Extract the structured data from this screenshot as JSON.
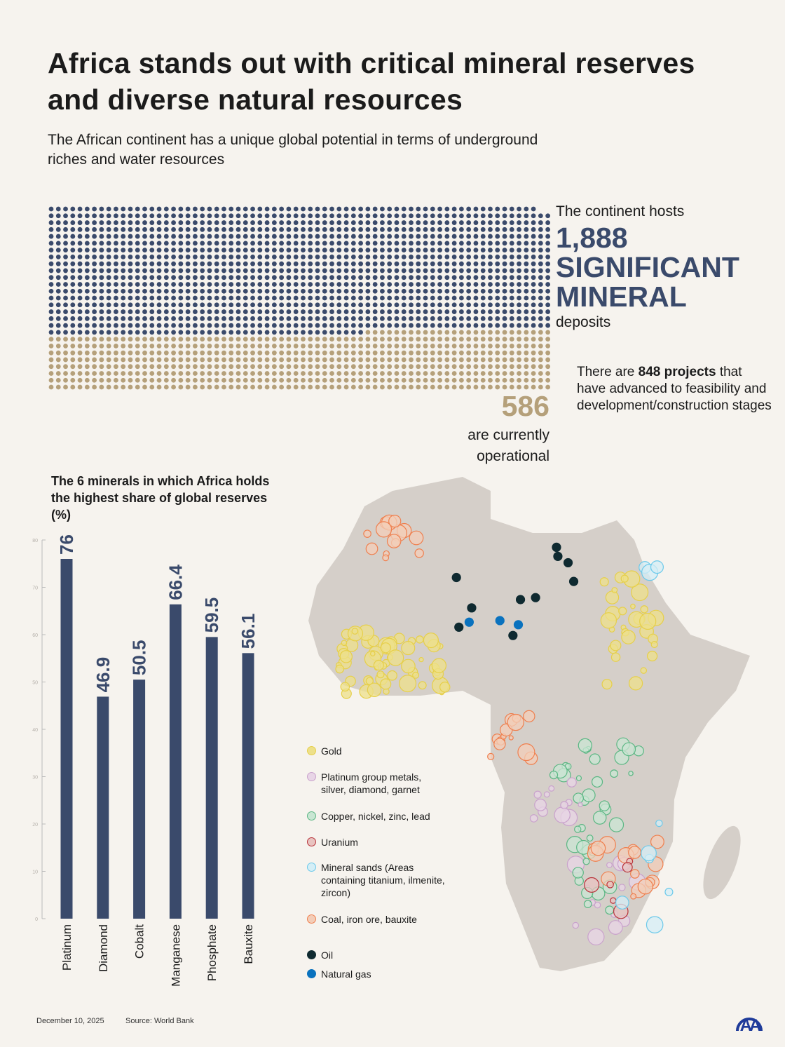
{
  "header": {
    "title": "Africa stands out with critical mineral reserves and diverse natural resources",
    "subtitle": "The African continent has a unique global potential in terms of underground riches and water resources"
  },
  "deposits": {
    "total": 1888,
    "operational": 586,
    "hosts_prefix": "The continent hosts",
    "hosts_number": "1,888",
    "hosts_big": "SIGNIFICANT MINERAL",
    "hosts_suffix": "deposits",
    "operational_number": "586",
    "operational_text": "are currently operational",
    "projects_prefix": "There are ",
    "projects_bold": "848 projects",
    "projects_suffix": " that have advanced to feasibility and development/construction stages",
    "colors": {
      "total": "#3a4a6b",
      "operational": "#b5a07a"
    }
  },
  "chart_data": {
    "type": "bar",
    "title": "The 6 minerals in which Africa holds the highest share of global reserves (%)",
    "categories": [
      "Platinum",
      "Diamond",
      "Cobalt",
      "Manganese",
      "Phosphate",
      "Bauxite"
    ],
    "values": [
      76,
      46.9,
      50.5,
      66.4,
      59.5,
      56.1
    ],
    "value_labels": [
      "76",
      "46.9",
      "50.5",
      "66.4",
      "59.5",
      "56.1"
    ],
    "ylim": [
      0,
      80
    ],
    "yticks": [
      0,
      10,
      20,
      30,
      40,
      50,
      60,
      70,
      80
    ],
    "grid": false,
    "bar_color": "#3a4a6b"
  },
  "map": {
    "legend": [
      {
        "label": "Gold",
        "fill": "#ede08a",
        "stroke": "#e6cf4a"
      },
      {
        "label": "Platinum group metals, silver, diamond, garnet",
        "fill": "#e8d5e6",
        "stroke": "#c9a2cc"
      },
      {
        "label": "Copper, nickel, zinc, lead",
        "fill": "#c9e6d3",
        "stroke": "#5cb784"
      },
      {
        "label": "Uranium",
        "fill": "#e8c3c0",
        "stroke": "#b8323a"
      },
      {
        "label": "Mineral sands (Areas containing titanium, ilmenite, zircon)",
        "fill": "#d4eef6",
        "stroke": "#6cc9ea"
      },
      {
        "label": "Coal, iron ore, bauxite",
        "fill": "#f3cdb8",
        "stroke": "#ef7f4e"
      },
      {
        "label": "Oil",
        "fill": "#0f2a30",
        "stroke": "#0f2a30"
      },
      {
        "label": "Natural gas",
        "fill": "#0a72be",
        "stroke": "#0a72be"
      }
    ],
    "land_color": "#d5cfc9"
  },
  "footer": {
    "date": "December 10, 2025",
    "source": "Source: World Bank",
    "logo": "AA"
  }
}
